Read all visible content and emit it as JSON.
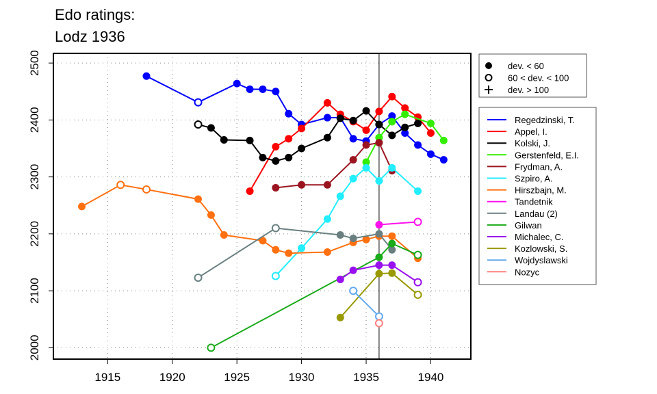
{
  "chart_data": {
    "type": "line",
    "title": [
      "Edo ratings:",
      "Lodz 1936"
    ],
    "xlabel": "",
    "ylabel": "",
    "xlim": [
      1910.8,
      1943.1
    ],
    "ylim": [
      1980,
      2517
    ],
    "xticks": [
      1915,
      1920,
      1925,
      1930,
      1935,
      1940
    ],
    "yticks": [
      2000,
      2100,
      2200,
      2300,
      2400,
      2500
    ],
    "grid": true,
    "reference_line_x": 1936,
    "marker_legend": [
      {
        "symbol": "filled",
        "label": "dev. < 60"
      },
      {
        "symbol": "open",
        "label": "60 < dev. < 100"
      },
      {
        "symbol": "plus",
        "label": "dev. > 100"
      }
    ],
    "legend_placement": "right",
    "series": [
      {
        "name": "Regedzinski, T.",
        "color": "#0000ff",
        "points": [
          [
            1918,
            2477,
            "f"
          ],
          [
            1922,
            2431,
            "o"
          ],
          [
            1925,
            2464,
            "f"
          ],
          [
            1926,
            2454,
            "f"
          ],
          [
            1927,
            2454,
            "f"
          ],
          [
            1928,
            2450,
            "f"
          ],
          [
            1929,
            2411,
            "f"
          ],
          [
            1930,
            2392,
            "f"
          ],
          [
            1932,
            2404,
            "f"
          ],
          [
            1933,
            2404,
            "f"
          ],
          [
            1934,
            2367,
            "f"
          ],
          [
            1935,
            2363,
            "f"
          ],
          [
            1936,
            2392,
            "f"
          ],
          [
            1937,
            2407,
            "f"
          ],
          [
            1938,
            2377,
            "f"
          ],
          [
            1939,
            2356,
            "f"
          ],
          [
            1940,
            2340,
            "f"
          ],
          [
            1941,
            2330,
            "f"
          ]
        ]
      },
      {
        "name": "Appel, I.",
        "color": "#ff0000",
        "points": [
          [
            1926,
            2275,
            "f"
          ],
          [
            1928,
            2353,
            "f"
          ],
          [
            1929,
            2367,
            "f"
          ],
          [
            1930,
            2385,
            "f"
          ],
          [
            1932,
            2430,
            "f"
          ],
          [
            1933,
            2410,
            "f"
          ],
          [
            1934,
            2397,
            "f"
          ],
          [
            1935,
            2382,
            "f"
          ],
          [
            1936,
            2415,
            "f"
          ],
          [
            1937,
            2441,
            "f"
          ],
          [
            1938,
            2421,
            "f"
          ],
          [
            1939,
            2405,
            "f"
          ],
          [
            1940,
            2377,
            "f"
          ]
        ]
      },
      {
        "name": "Kolski, J.",
        "color": "#000000",
        "points": [
          [
            1922,
            2392,
            "o"
          ],
          [
            1923,
            2386,
            "f"
          ],
          [
            1924,
            2365,
            "f"
          ],
          [
            1926,
            2364,
            "f"
          ],
          [
            1927,
            2334,
            "f"
          ],
          [
            1928,
            2328,
            "f"
          ],
          [
            1929,
            2334,
            "f"
          ],
          [
            1930,
            2350,
            "f"
          ],
          [
            1932,
            2369,
            "f"
          ],
          [
            1933,
            2403,
            "f"
          ],
          [
            1934,
            2399,
            "f"
          ],
          [
            1935,
            2416,
            "f"
          ],
          [
            1936,
            2392,
            "f"
          ],
          [
            1937,
            2373,
            "f"
          ],
          [
            1938,
            2387,
            "f"
          ],
          [
            1939,
            2394,
            "f"
          ]
        ]
      },
      {
        "name": "Gerstenfeld, E.I.",
        "color": "#33ee00",
        "points": [
          [
            1935,
            2326,
            "f"
          ],
          [
            1936,
            2369,
            "f"
          ],
          [
            1937,
            2397,
            "f"
          ],
          [
            1938,
            2410,
            "f"
          ],
          [
            1940,
            2394,
            "f"
          ],
          [
            1941,
            2364,
            "f"
          ]
        ]
      },
      {
        "name": "Frydman, A.",
        "color": "#9b1520",
        "points": [
          [
            1928,
            2281,
            "f"
          ],
          [
            1930,
            2286,
            "f"
          ],
          [
            1932,
            2286,
            "f"
          ],
          [
            1934,
            2330,
            "f"
          ],
          [
            1935,
            2356,
            "f"
          ],
          [
            1936,
            2360,
            "f"
          ],
          [
            1937,
            2311,
            "f"
          ]
        ]
      },
      {
        "name": "Szpiro, A.",
        "color": "#22eeff",
        "points": [
          [
            1928,
            2126,
            "o"
          ],
          [
            1930,
            2175,
            "f"
          ],
          [
            1932,
            2226,
            "f"
          ],
          [
            1933,
            2266,
            "f"
          ],
          [
            1934,
            2297,
            "f"
          ],
          [
            1935,
            2316,
            "f"
          ],
          [
            1936,
            2293,
            "f"
          ],
          [
            1937,
            2316,
            "f"
          ],
          [
            1939,
            2275,
            "f"
          ]
        ]
      },
      {
        "name": "Hirszbajn, M.",
        "color": "#ff7010",
        "points": [
          [
            1913,
            2248,
            "f"
          ],
          [
            1916,
            2286,
            "o"
          ],
          [
            1918,
            2278,
            "o"
          ],
          [
            1922,
            2261,
            "f"
          ],
          [
            1923,
            2233,
            "f"
          ],
          [
            1924,
            2198,
            "f"
          ],
          [
            1927,
            2188,
            "f"
          ],
          [
            1928,
            2172,
            "f"
          ],
          [
            1929,
            2166,
            "f"
          ],
          [
            1932,
            2168,
            "f"
          ],
          [
            1934,
            2185,
            "f"
          ],
          [
            1935,
            2190,
            "f"
          ],
          [
            1936,
            2196,
            "f"
          ],
          [
            1937,
            2196,
            "f"
          ],
          [
            1939,
            2157,
            "f"
          ]
        ]
      },
      {
        "name": "Tandetnik",
        "color": "#ff11ee",
        "points": [
          [
            1936,
            2216,
            "f"
          ],
          [
            1939,
            2221,
            "o"
          ]
        ]
      },
      {
        "name": "Landau (2)",
        "color": "#6a8080",
        "points": [
          [
            1922,
            2123,
            "o"
          ],
          [
            1928,
            2210,
            "o"
          ],
          [
            1933,
            2198,
            "f"
          ],
          [
            1934,
            2192,
            "f"
          ],
          [
            1936,
            2200,
            "f"
          ],
          [
            1937,
            2172,
            "f"
          ]
        ]
      },
      {
        "name": "Gilwan",
        "color": "#1aaa1a",
        "points": [
          [
            1923,
            2000,
            "o"
          ],
          [
            1936,
            2159,
            "f"
          ],
          [
            1937,
            2183,
            "f"
          ],
          [
            1939,
            2163,
            "o"
          ]
        ]
      },
      {
        "name": "Michalec, C.",
        "color": "#9911ee",
        "points": [
          [
            1933,
            2120,
            "f"
          ],
          [
            1934,
            2136,
            "f"
          ],
          [
            1936,
            2145,
            "f"
          ],
          [
            1937,
            2145,
            "f"
          ],
          [
            1939,
            2115,
            "o"
          ]
        ]
      },
      {
        "name": "Kozlowski, S.",
        "color": "#999900",
        "points": [
          [
            1933,
            2053,
            "f"
          ],
          [
            1936,
            2130,
            "f"
          ],
          [
            1937,
            2131,
            "f"
          ],
          [
            1939,
            2093,
            "o"
          ]
        ]
      },
      {
        "name": "Wojdyslawski",
        "color": "#66aaee",
        "points": [
          [
            1934,
            2100,
            "o"
          ],
          [
            1936,
            2055,
            "o"
          ]
        ]
      },
      {
        "name": "Nozyc",
        "color": "#ff8080",
        "points": [
          [
            1936,
            2043,
            "o"
          ]
        ]
      }
    ]
  }
}
